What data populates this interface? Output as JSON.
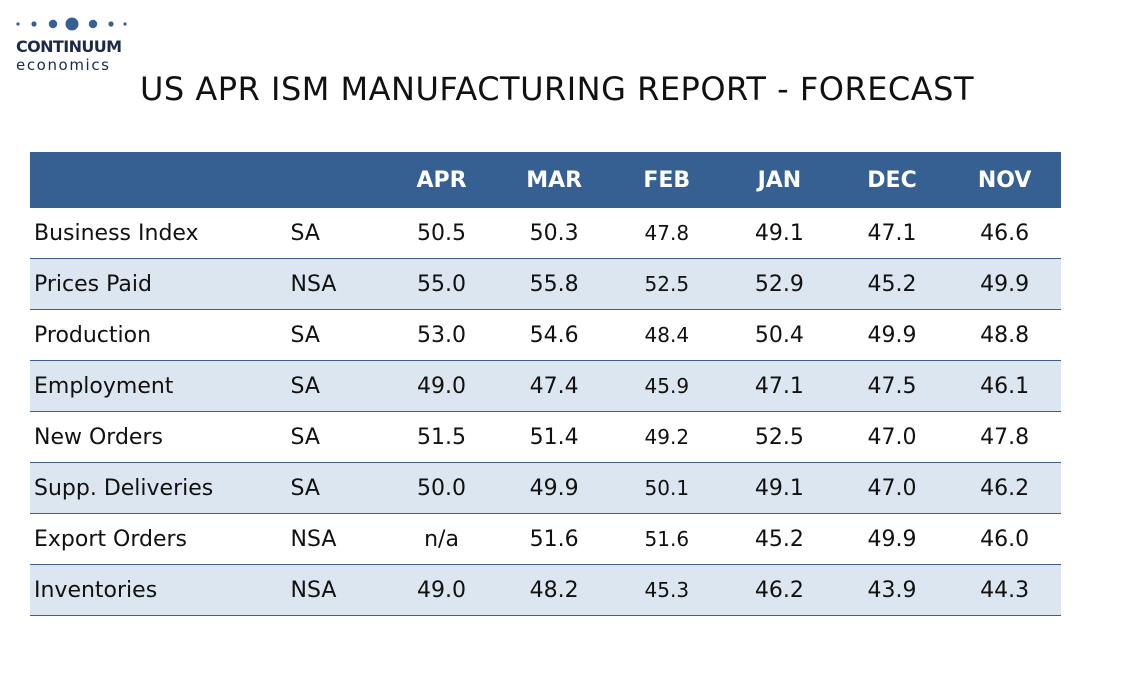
{
  "brand": {
    "name": "CONTINUUM",
    "sub": "economics",
    "color": "#1b2a4a"
  },
  "title": "US APR ISM MANUFACTURING REPORT - FORECAST",
  "colors": {
    "header_bg": "#365f92",
    "header_text": "#ffffff",
    "stripe": "#dce6f1",
    "rule": "#3f5f88"
  },
  "table": {
    "columns": [
      "",
      "",
      "APR",
      "MAR",
      "FEB",
      "JAN",
      "DEC",
      "NOV"
    ],
    "rows": [
      {
        "label": "Business Index",
        "adj": "SA",
        "values": [
          "50.5",
          "50.3",
          "47.8",
          "49.1",
          "47.1",
          "46.6"
        ]
      },
      {
        "label": "Prices Paid",
        "adj": "NSA",
        "values": [
          "55.0",
          "55.8",
          "52.5",
          "52.9",
          "45.2",
          "49.9"
        ]
      },
      {
        "label": "Production",
        "adj": "SA",
        "values": [
          "53.0",
          "54.6",
          "48.4",
          "50.4",
          "49.9",
          "48.8"
        ]
      },
      {
        "label": "Employment",
        "adj": "SA",
        "values": [
          "49.0",
          "47.4",
          "45.9",
          "47.1",
          "47.5",
          "46.1"
        ]
      },
      {
        "label": "New Orders",
        "adj": "SA",
        "values": [
          "51.5",
          "51.4",
          "49.2",
          "52.5",
          "47.0",
          "47.8"
        ]
      },
      {
        "label": "Supp. Deliveries",
        "adj": "SA",
        "values": [
          "50.0",
          "49.9",
          "50.1",
          "49.1",
          "47.0",
          "46.2"
        ]
      },
      {
        "label": "Export Orders",
        "adj": "NSA",
        "values": [
          "n/a",
          "51.6",
          "51.6",
          "45.2",
          "49.9",
          "46.0"
        ]
      },
      {
        "label": "Inventories",
        "adj": "NSA",
        "values": [
          "49.0",
          "48.2",
          "45.3",
          "46.2",
          "43.9",
          "44.3"
        ]
      }
    ]
  }
}
